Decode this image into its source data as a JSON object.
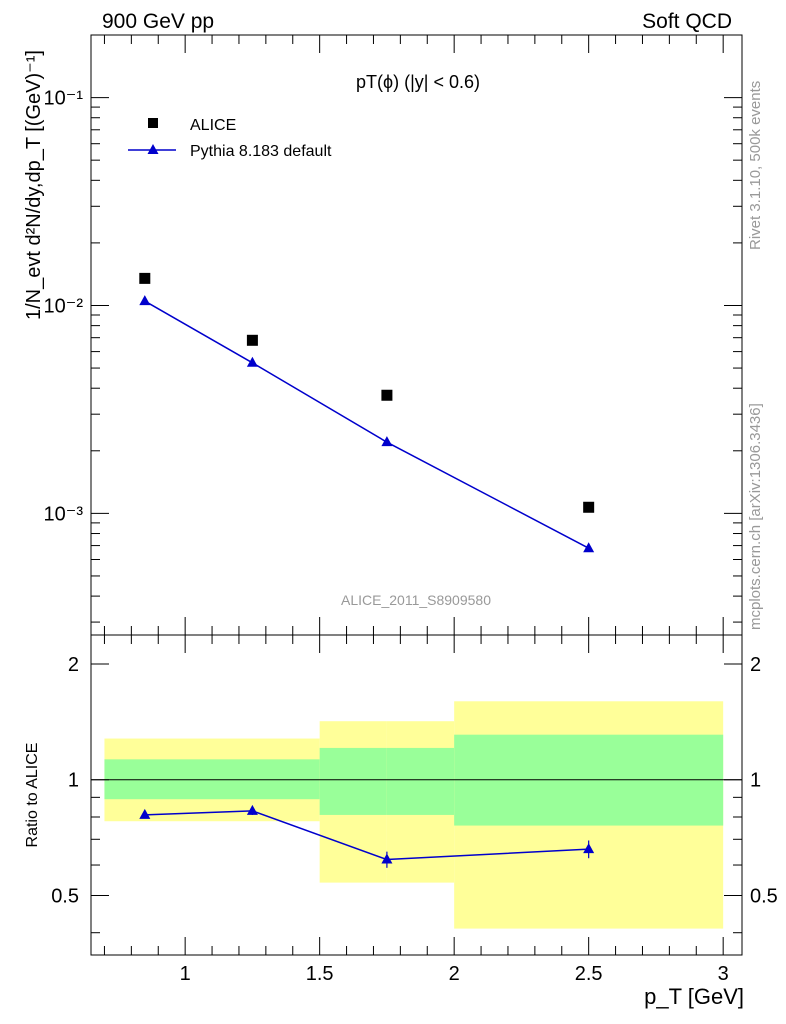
{
  "header": {
    "left": "900 GeV pp",
    "right": "Soft QCD"
  },
  "side": {
    "rivet": "Rivet 3.1.10,  500k events",
    "mcplots": "mcplots.cern.ch [arXiv:1306.3436]"
  },
  "chart_data": [
    {
      "type": "scatter",
      "panel": "main",
      "title": "pT(ϕ) (|y| < 0.6)",
      "analysis": "ALICE_2011_S8909580",
      "ylabel": "1/N_evt d²N/dy,dp_T [(GeV)⁻¹]",
      "yscale": "log",
      "xlim": [
        0.65,
        3.07
      ],
      "ylim": [
        0.00026,
        0.2
      ],
      "ytick_labels": [
        "10⁻³",
        "10⁻²",
        "10⁻¹"
      ],
      "series": [
        {
          "name": "ALICE",
          "marker": "square",
          "color": "#000000",
          "x": [
            0.85,
            1.25,
            1.75,
            2.5
          ],
          "values": [
            0.0135,
            0.0068,
            0.0037,
            0.00107
          ]
        },
        {
          "name": "Pythia 8.183 default",
          "marker": "triangle",
          "line": true,
          "color": "#0000cc",
          "x": [
            0.85,
            1.25,
            1.75,
            2.5
          ],
          "values": [
            0.0105,
            0.0053,
            0.0022,
            0.00068
          ]
        }
      ]
    },
    {
      "type": "line",
      "panel": "ratio",
      "ylabel": "Ratio to ALICE",
      "xlabel": "p_T [GeV]",
      "xlim": [
        0.65,
        3.07
      ],
      "ylim": [
        0.35,
        2.38
      ],
      "x_ticks": [
        1,
        1.5,
        2,
        2.5,
        3
      ],
      "x_tick_labels": [
        "1",
        "1.5",
        "2",
        "2.5",
        "3"
      ],
      "y_ticks": [
        0.5,
        1,
        2
      ],
      "y_tick_labels": [
        "0.5",
        "1",
        "2"
      ],
      "bands": [
        {
          "x0": 0.7,
          "x1": 1.5,
          "green": [
            0.89,
            1.13
          ],
          "yellow": [
            0.78,
            1.28
          ]
        },
        {
          "x0": 1.5,
          "x1": 1.75,
          "green": [
            0.81,
            1.21
          ],
          "yellow": [
            0.54,
            1.42
          ]
        },
        {
          "x0": 1.75,
          "x1": 2.0,
          "green": [
            0.81,
            1.21
          ],
          "yellow": [
            0.54,
            1.42
          ]
        },
        {
          "x0": 2.0,
          "x1": 3.0,
          "green": [
            0.76,
            1.31
          ],
          "yellow": [
            0.41,
            1.6
          ]
        }
      ],
      "series": [
        {
          "name": "Pythia 8.183 default",
          "color": "#0000cc",
          "x": [
            0.85,
            1.25,
            1.75,
            2.5
          ],
          "values": [
            0.81,
            0.83,
            0.62,
            0.66
          ],
          "errors": [
            0.015,
            0.02,
            0.03,
            0.035
          ]
        }
      ]
    }
  ]
}
